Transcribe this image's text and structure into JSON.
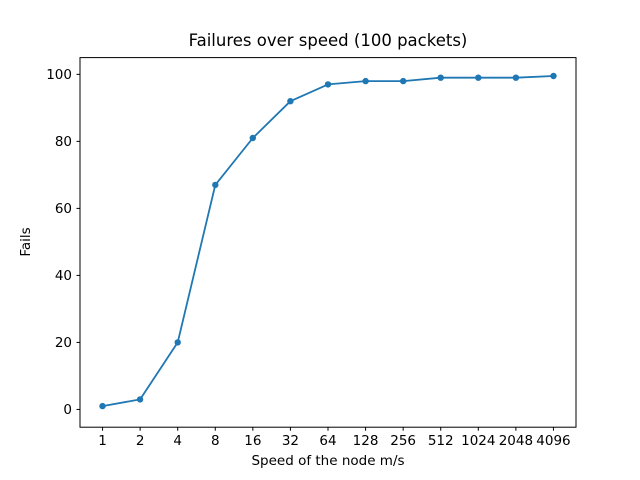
{
  "figure": {
    "background": "#ffffff",
    "text_color": "#000000"
  },
  "chart_data": {
    "type": "line",
    "title": "Failures over speed (100 packets)",
    "xlabel": "Speed of the node m/s",
    "ylabel": "Fails",
    "x_scale": "log2",
    "categories": [
      1,
      2,
      4,
      8,
      16,
      32,
      64,
      128,
      256,
      512,
      1024,
      2048,
      4096
    ],
    "values": [
      1,
      3,
      20,
      67,
      81,
      92,
      97,
      98,
      98,
      99,
      99,
      99,
      99.5
    ],
    "y_ticks": [
      0,
      20,
      40,
      60,
      80,
      100
    ],
    "ylim": [
      -5.3,
      105
    ],
    "xlim_log2": [
      -0.6,
      12.6
    ],
    "line_color": "#1f77b4",
    "marker": "circle",
    "marker_size": 3.2,
    "grid": false,
    "legend": "none"
  }
}
